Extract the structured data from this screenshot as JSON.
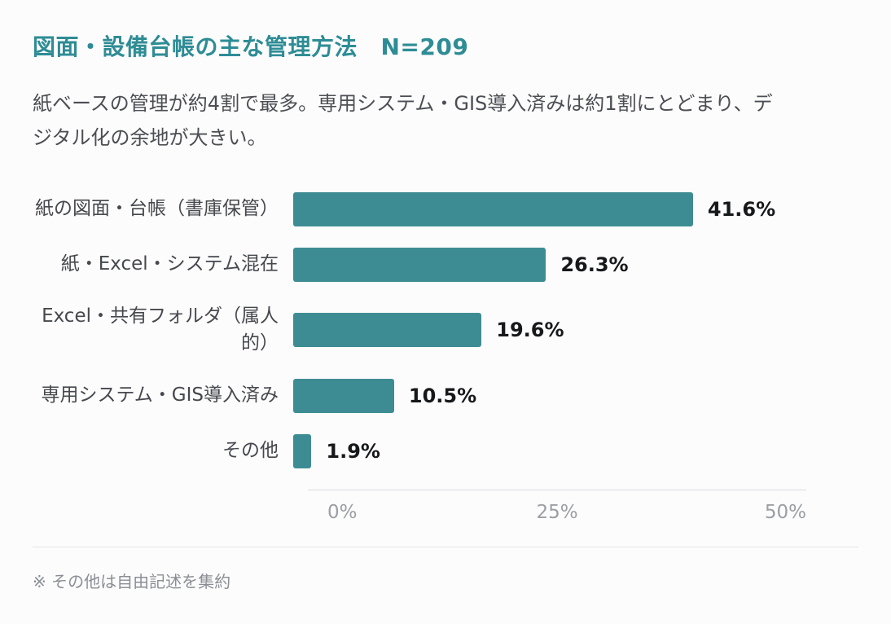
{
  "header": {
    "title": "図面・設備台帳の主な管理方法　N=209",
    "subtitle": "紙ベースの管理が約4割で最多。専用システム・GIS導入済みは約1割にとどまり、デジタル化の余地が大きい。"
  },
  "chart_data": {
    "type": "bar",
    "orientation": "horizontal",
    "title": "図面・設備台帳の主な管理方法",
    "sample_size_label": "N=209",
    "categories": [
      "紙の図面・台帳（書庫保管）",
      "紙・Excel・システム混在",
      "Excel・共有フォルダ（属人的）",
      "専用システム・GIS導入済み",
      "その他"
    ],
    "values": [
      41.6,
      26.3,
      19.6,
      10.5,
      1.9
    ],
    "value_labels": [
      "41.6%",
      "26.3%",
      "19.6%",
      "10.5%",
      "1.9%"
    ],
    "x_ticks": [
      "0%",
      "25%",
      "50%"
    ],
    "xlim": [
      0,
      50
    ],
    "bar_color": "#3e8c93",
    "title_color": "#2e8c95",
    "grid": false,
    "legend": "none"
  },
  "footnote": "※ その他は自由記述を集約"
}
